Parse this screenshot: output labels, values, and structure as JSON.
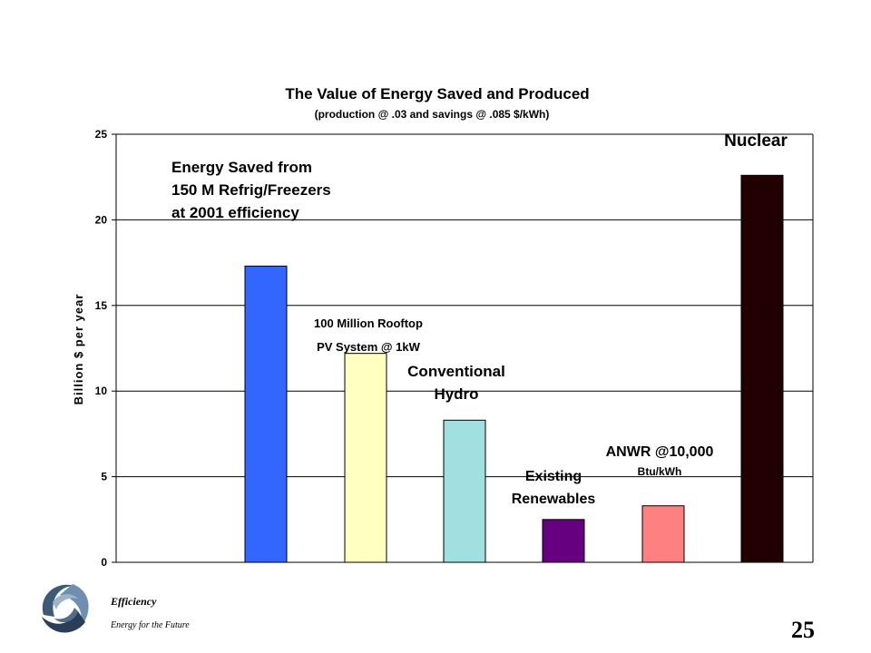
{
  "chart_data": {
    "type": "bar",
    "title": "The Value of Energy Saved and Produced",
    "subtitle": "(production @ .03 and savings @ .085 $/kWh)",
    "ylabel": "Billion $ per year",
    "xlabel": "",
    "ylim": [
      0,
      25
    ],
    "yticks": [
      0,
      5,
      10,
      15,
      20,
      25
    ],
    "grid": true,
    "categories": [
      "Energy Saved from 150 M Refrig/Freezers at 2001 efficiency",
      "100 Million Rooftop PV System @ 1kW",
      "Conventional Hydro",
      "Existing Renewables",
      "ANWR @10,000 Btu/kWh",
      "Nuclear"
    ],
    "values": [
      17.3,
      12.2,
      8.3,
      2.5,
      3.3,
      22.6
    ],
    "colors": [
      "#3366ff",
      "#ffffc0",
      "#a0e0e0",
      "#660080",
      "#ff8080",
      "#200000"
    ],
    "annotations": [
      {
        "lines": [
          "Energy Saved from",
          "150 M Refrig/Freezers",
          "at 2001 efficiency"
        ]
      },
      {
        "lines": [
          "100 Million Rooftop",
          "PV System @ 1kW"
        ]
      },
      {
        "lines": [
          "Conventional",
          "Hydro"
        ]
      },
      {
        "lines": [
          "Existing",
          "Renewables"
        ]
      },
      {
        "lines": [
          "ANWR @10,000",
          "Btu/kWh"
        ]
      },
      {
        "lines": [
          "Nuclear"
        ]
      }
    ]
  },
  "footer": {
    "title": "Efficiency",
    "subtitle": "Energy for the Future",
    "page_number": "25"
  }
}
